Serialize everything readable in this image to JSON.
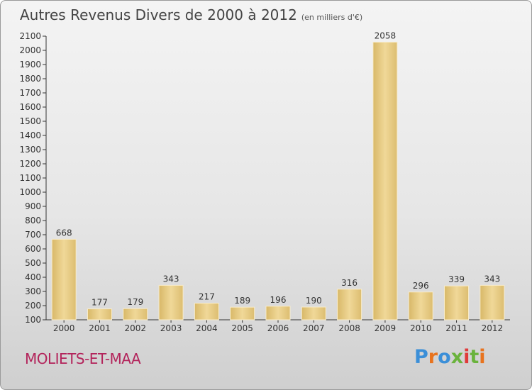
{
  "header": {
    "title": "Autres Revenus Divers de 2000 à 2012",
    "subtitle": "(en milliers d'€)"
  },
  "commune": "MOLIETS-ET-MAA",
  "logo": {
    "text": "Proxiti",
    "letters": [
      "P",
      "r",
      "o",
      "x",
      "i",
      "t",
      "i"
    ],
    "colors": [
      "#3b8fd8",
      "#e8731e",
      "#3b8fd8",
      "#6ab33c",
      "#e03a3a",
      "#6ab33c",
      "#e8731e"
    ]
  },
  "chart_data": {
    "type": "bar",
    "categories": [
      "2000",
      "2001",
      "2002",
      "2003",
      "2004",
      "2005",
      "2006",
      "2007",
      "2008",
      "2009",
      "2010",
      "2011",
      "2012"
    ],
    "values": [
      668,
      177,
      179,
      343,
      217,
      189,
      196,
      190,
      316,
      2058,
      296,
      339,
      343
    ],
    "ylim": [
      100,
      2100
    ],
    "yticks": [
      100,
      200,
      300,
      400,
      500,
      600,
      700,
      800,
      900,
      1000,
      1100,
      1200,
      1300,
      1400,
      1500,
      1600,
      1700,
      1800,
      1900,
      2000,
      2100
    ],
    "data_labels": true,
    "grid": false,
    "bar_color": "#ead08a",
    "title": "Autres Revenus Divers de 2000 à 2012",
    "xlabel": "",
    "ylabel": ""
  }
}
